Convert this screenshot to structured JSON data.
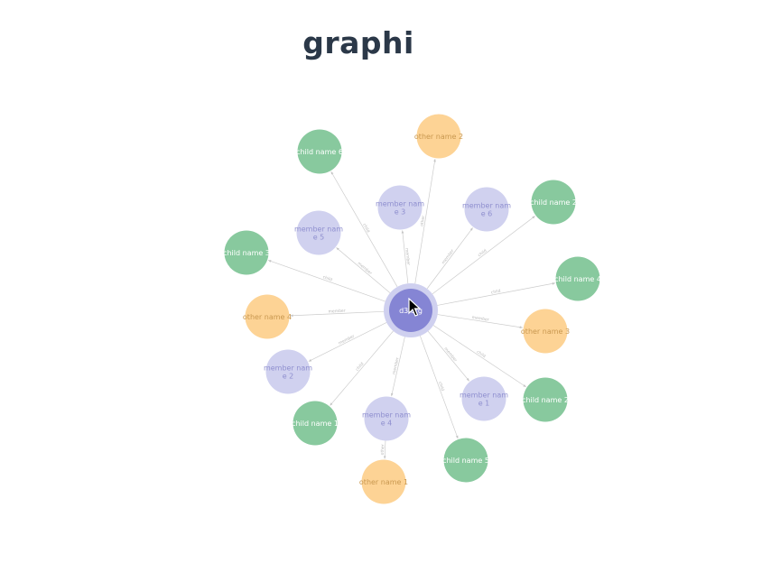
{
  "title": "graphi",
  "colors": {
    "center": "#8585d4",
    "center_ring": "#cfd0ef",
    "member": "#d0d1ef",
    "member_text": "#8f8fcf",
    "child": "#88c99e",
    "child_text": "#ffffff",
    "other": "#fdd395",
    "other_text": "#c99850",
    "edge": "#cccccc"
  },
  "center": {
    "label": "d3 org"
  },
  "nodes": [
    {
      "id": "c6",
      "type": "child",
      "lines": [
        "child name 6"
      ],
      "edge_label": "child"
    },
    {
      "id": "o2",
      "type": "other",
      "lines": [
        "other name 2"
      ],
      "edge_label": "other"
    },
    {
      "id": "m3",
      "type": "member",
      "lines": [
        "member nam",
        "e 3"
      ],
      "edge_label": "member"
    },
    {
      "id": "m6",
      "type": "member",
      "lines": [
        "member nam",
        "e 6"
      ],
      "edge_label": "member"
    },
    {
      "id": "c2a",
      "type": "child",
      "lines": [
        "child name 2"
      ],
      "edge_label": "child"
    },
    {
      "id": "m5",
      "type": "member",
      "lines": [
        "member nam",
        "e 5"
      ],
      "edge_label": "member"
    },
    {
      "id": "c3",
      "type": "child",
      "lines": [
        "child name 3"
      ],
      "edge_label": "child"
    },
    {
      "id": "c4",
      "type": "child",
      "lines": [
        "child name 4"
      ],
      "edge_label": "child"
    },
    {
      "id": "o4",
      "type": "other",
      "lines": [
        "other name 4"
      ],
      "edge_label": "member"
    },
    {
      "id": "o3",
      "type": "other",
      "lines": [
        "other name 3"
      ],
      "edge_label": "member"
    },
    {
      "id": "m2",
      "type": "member",
      "lines": [
        "member nam",
        "e 2"
      ],
      "edge_label": "member"
    },
    {
      "id": "c2b",
      "type": "child",
      "lines": [
        "child name 2"
      ],
      "edge_label": "child"
    },
    {
      "id": "m1",
      "type": "member",
      "lines": [
        "member nam",
        "e 1"
      ],
      "edge_label": "member"
    },
    {
      "id": "c1",
      "type": "child",
      "lines": [
        "child name 1"
      ],
      "edge_label": "child"
    },
    {
      "id": "m4",
      "type": "member",
      "lines": [
        "member nam",
        "e 4"
      ],
      "edge_label": "member"
    },
    {
      "id": "c5",
      "type": "child",
      "lines": [
        "child name 5"
      ],
      "edge_label": "child"
    },
    {
      "id": "o1",
      "type": "other",
      "lines": [
        "other name 1"
      ],
      "edge_label": "other"
    }
  ],
  "edges": [
    {
      "from": "center",
      "to": "c6"
    },
    {
      "from": "center",
      "to": "o2"
    },
    {
      "from": "center",
      "to": "m3"
    },
    {
      "from": "center",
      "to": "m6"
    },
    {
      "from": "center",
      "to": "c2a"
    },
    {
      "from": "center",
      "to": "m5"
    },
    {
      "from": "center",
      "to": "c3"
    },
    {
      "from": "center",
      "to": "c4"
    },
    {
      "from": "center",
      "to": "o4"
    },
    {
      "from": "center",
      "to": "o3"
    },
    {
      "from": "center",
      "to": "m2"
    },
    {
      "from": "center",
      "to": "c2b"
    },
    {
      "from": "center",
      "to": "m1"
    },
    {
      "from": "center",
      "to": "c1"
    },
    {
      "from": "center",
      "to": "m4"
    },
    {
      "from": "center",
      "to": "c5"
    },
    {
      "from": "m4",
      "to": "o1"
    }
  ]
}
